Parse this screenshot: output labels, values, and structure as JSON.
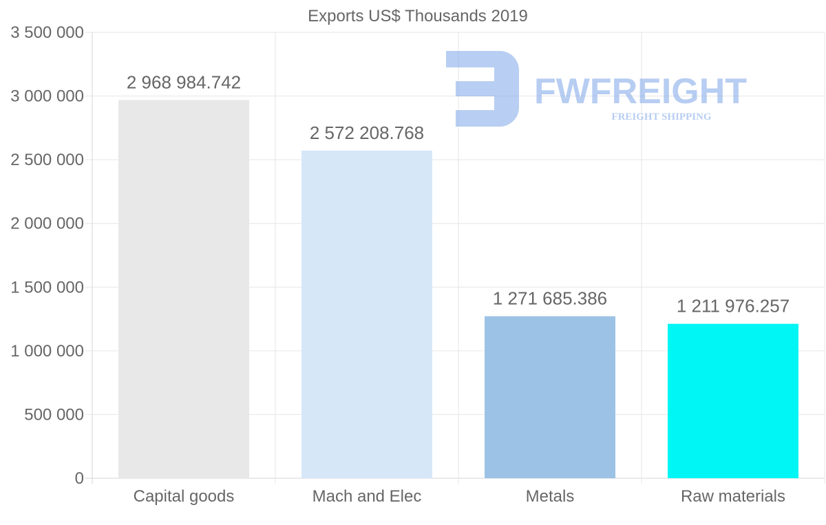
{
  "chart_data": {
    "type": "bar",
    "title": "Exports US$ Thousands 2019",
    "xlabel": "",
    "ylabel": "",
    "ylim": [
      0,
      3500000
    ],
    "ytick_step": 500000,
    "yticks": [
      "0",
      "500 000",
      "1 000 000",
      "1 500 000",
      "2 000 000",
      "2 500 000",
      "3 000 000",
      "3 500 000"
    ],
    "categories": [
      "Capital goods",
      "Mach and Elec",
      "Metals",
      "Raw materials"
    ],
    "values": [
      2968984.742,
      2572208.768,
      1271685.386,
      1211976.257
    ],
    "value_labels": [
      "2 968 984.742",
      "2 572 208.768",
      "1 271 685.386",
      "1 211 976.257"
    ],
    "colors": [
      "#e8e8e8",
      "#d6e7f8",
      "#9cc3e6",
      "#00f5f5"
    ],
    "grid": true,
    "legend": "none"
  },
  "watermark": {
    "brand": "FWFREIGHT",
    "tagline": "FREIGHT SHIPPING",
    "color": "#7ea6e8"
  }
}
